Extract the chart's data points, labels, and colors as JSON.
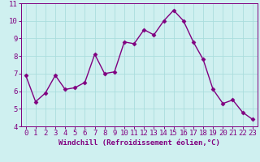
{
  "x": [
    0,
    1,
    2,
    3,
    4,
    5,
    6,
    7,
    8,
    9,
    10,
    11,
    12,
    13,
    14,
    15,
    16,
    17,
    18,
    19,
    20,
    21,
    22,
    23
  ],
  "y": [
    6.9,
    5.4,
    5.9,
    6.9,
    6.1,
    6.2,
    6.5,
    8.1,
    7.0,
    7.1,
    8.8,
    8.7,
    9.5,
    9.2,
    10.0,
    10.6,
    10.0,
    8.8,
    7.8,
    6.1,
    5.3,
    5.5,
    4.8,
    4.4
  ],
  "line_color": "#800080",
  "marker": "D",
  "marker_size": 2.5,
  "bg_color": "#cff0f0",
  "grid_color": "#aadddd",
  "ylim": [
    4,
    11
  ],
  "xlim": [
    -0.5,
    23.5
  ],
  "yticks": [
    4,
    5,
    6,
    7,
    8,
    9,
    10,
    11
  ],
  "xticks": [
    0,
    1,
    2,
    3,
    4,
    5,
    6,
    7,
    8,
    9,
    10,
    11,
    12,
    13,
    14,
    15,
    16,
    17,
    18,
    19,
    20,
    21,
    22,
    23
  ],
  "tick_color": "#800080",
  "label_color": "#800080",
  "xlabel": "Windchill (Refroidissement éolien,°C)",
  "xlabel_fontsize": 6.5,
  "tick_fontsize": 6.5,
  "line_width": 1.0
}
